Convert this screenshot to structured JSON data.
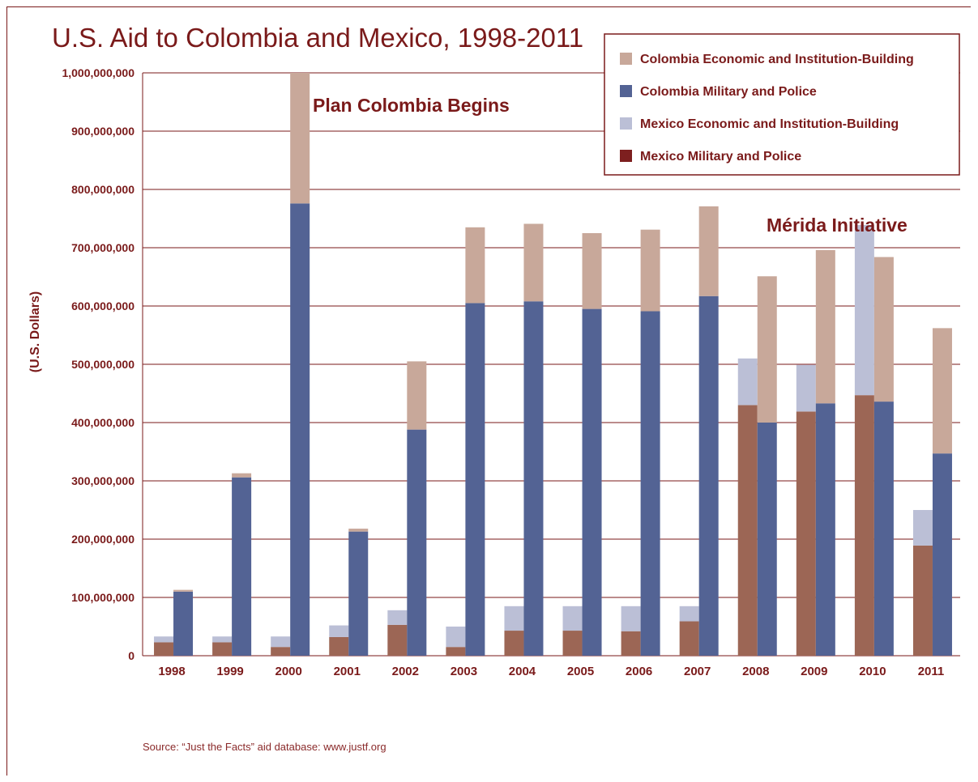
{
  "chart_data": {
    "type": "bar",
    "title": "U.S. Aid to Colombia and Mexico, 1998-2011",
    "ylabel": "(U.S. Dollars)",
    "xlabel": "",
    "ylim": [
      0,
      1000000000
    ],
    "yticks": [
      0,
      100000000,
      200000000,
      300000000,
      400000000,
      500000000,
      600000000,
      700000000,
      800000000,
      900000000,
      1000000000
    ],
    "ytick_labels": [
      "0",
      "100,000,000",
      "200,000,000",
      "300,000,000",
      "400,000,000",
      "500,000,000",
      "600,000,000",
      "700,000,000",
      "800,000,000",
      "900,000,000",
      "1,000,000,000"
    ],
    "grid": true,
    "legend_placement": "top-right",
    "categories": [
      "1998",
      "1999",
      "2000",
      "2001",
      "2002",
      "2003",
      "2004",
      "2005",
      "2006",
      "2007",
      "2008",
      "2009",
      "2010",
      "2011"
    ],
    "stacks": [
      {
        "name": "Mexico",
        "series": [
          "Mexico Military and Police",
          "Mexico Economic and Institution-Building"
        ]
      },
      {
        "name": "Colombia",
        "series": [
          "Colombia Military and Police",
          "Colombia Economic and Institution-Building"
        ]
      }
    ],
    "series": [
      {
        "name": "Colombia Economic and Institution-Building",
        "color": "#c8a89a",
        "values": [
          3000000,
          7000000,
          224000000,
          5000000,
          117000000,
          130000000,
          133000000,
          130000000,
          140000000,
          154000000,
          251000000,
          263000000,
          248000000,
          215000000
        ]
      },
      {
        "name": "Colombia Military and Police",
        "color": "#536394",
        "values": [
          110000000,
          306000000,
          776000000,
          213000000,
          388000000,
          605000000,
          608000000,
          595000000,
          591000000,
          617000000,
          400000000,
          433000000,
          436000000,
          347000000
        ]
      },
      {
        "name": "Mexico Economic and Institution-Building",
        "color": "#bbbfd6",
        "values": [
          10000000,
          10000000,
          18000000,
          20000000,
          25000000,
          35000000,
          42000000,
          42000000,
          43000000,
          26000000,
          80000000,
          80000000,
          292000000,
          61000000
        ]
      },
      {
        "name": "Mexico Military and Police",
        "color": "#9c6655",
        "values": [
          23000000,
          23000000,
          15000000,
          32000000,
          53000000,
          15000000,
          43000000,
          43000000,
          42000000,
          59000000,
          430000000,
          419000000,
          447000000,
          189000000
        ]
      }
    ],
    "annotations": [
      {
        "text": "Plan Colombia Begins",
        "category": "2000"
      },
      {
        "text": "Mérida Initiative",
        "category": "2009"
      }
    ]
  },
  "source": "Source: “Just the Facts” aid database: www.justf.org",
  "colors": {
    "accent": "#7a1a1a",
    "grid": "#7a1a1a"
  }
}
